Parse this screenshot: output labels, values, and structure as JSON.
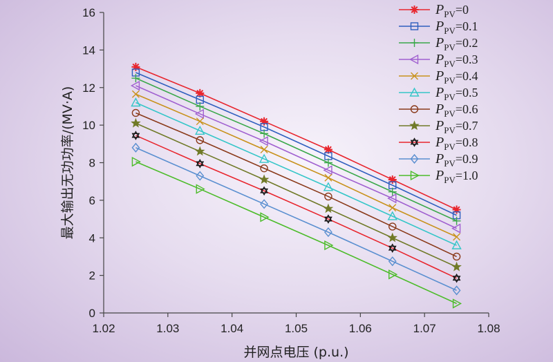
{
  "chart_data": {
    "type": "line",
    "title": "",
    "xlabel": "并网点电压 (p.u.)",
    "ylabel": "最大输出无功功率/(MV·A)",
    "xlim": [
      1.02,
      1.08
    ],
    "ylim": [
      0,
      16
    ],
    "xticks": [
      "1.02",
      "1.03",
      "1.04",
      "1.05",
      "1.06",
      "1.07",
      "1.08"
    ],
    "yticks": [
      "0",
      "2",
      "4",
      "6",
      "8",
      "10",
      "12",
      "14",
      "16"
    ],
    "grid": false,
    "legend_position": "top-right",
    "x": [
      1.025,
      1.035,
      1.045,
      1.055,
      1.065,
      1.075
    ],
    "series": [
      {
        "name": "P_PV=0",
        "legend_var": "P",
        "legend_sub": "PV",
        "legend_value": "=0",
        "color": "#e8252d",
        "marker": "asterisk",
        "values": [
          13.1,
          11.7,
          10.2,
          8.7,
          7.1,
          5.5
        ]
      },
      {
        "name": "P_PV=0.1",
        "legend_var": "P",
        "legend_sub": "PV",
        "legend_value": "=0.1",
        "color": "#2f5fbe",
        "marker": "square",
        "values": [
          12.8,
          11.35,
          9.9,
          8.35,
          6.8,
          5.2
        ]
      },
      {
        "name": "P_PV=0.2",
        "legend_var": "P",
        "legend_sub": "PV",
        "legend_value": "=0.2",
        "color": "#3aa84a",
        "marker": "plus",
        "values": [
          12.5,
          11.0,
          9.55,
          8.0,
          6.45,
          4.9
        ]
      },
      {
        "name": "P_PV=0.3",
        "legend_var": "P",
        "legend_sub": "PV",
        "legend_value": "=0.3",
        "color": "#a060d0",
        "marker": "triangle-left",
        "values": [
          12.1,
          10.6,
          9.15,
          7.6,
          6.1,
          4.5
        ]
      },
      {
        "name": "P_PV=0.4",
        "legend_var": "P",
        "legend_sub": "PV",
        "legend_value": "=0.4",
        "color": "#c8921c",
        "marker": "x",
        "values": [
          11.65,
          10.2,
          8.7,
          7.2,
          5.6,
          4.05
        ]
      },
      {
        "name": "P_PV=0.5",
        "legend_var": "P",
        "legend_sub": "PV",
        "legend_value": "=0.5",
        "color": "#35c6c8",
        "marker": "triangle-up",
        "values": [
          11.2,
          9.7,
          8.2,
          6.7,
          5.15,
          3.6
        ]
      },
      {
        "name": "P_PV=0.6",
        "legend_var": "P",
        "legend_sub": "PV",
        "legend_value": "=0.6",
        "color": "#8a3a1a",
        "marker": "circle",
        "values": [
          10.65,
          9.2,
          7.7,
          6.2,
          4.6,
          3.0
        ]
      },
      {
        "name": "P_PV=0.7",
        "legend_var": "P",
        "legend_sub": "PV",
        "legend_value": "=0.7",
        "color": "#707a28",
        "marker": "star",
        "values": [
          10.1,
          8.6,
          7.1,
          5.55,
          4.0,
          2.45
        ]
      },
      {
        "name": "P_PV=0.8",
        "legend_var": "P",
        "legend_sub": "PV",
        "legend_value": "=0.8",
        "color": "#e8252d",
        "marker": "hexagram",
        "values": [
          9.45,
          7.95,
          6.5,
          5.0,
          3.45,
          1.85
        ]
      },
      {
        "name": "P_PV=0.9",
        "legend_var": "P",
        "legend_sub": "PV",
        "legend_value": "=0.9",
        "color": "#5a8fd0",
        "marker": "diamond",
        "values": [
          8.8,
          7.3,
          5.8,
          4.3,
          2.75,
          1.2
        ]
      },
      {
        "name": "P_PV=1.0",
        "legend_var": "P",
        "legend_sub": "PV",
        "legend_value": "=1.0",
        "color": "#4cbc2a",
        "marker": "triangle-right",
        "values": [
          8.05,
          6.6,
          5.1,
          3.6,
          2.05,
          0.5
        ]
      }
    ]
  }
}
